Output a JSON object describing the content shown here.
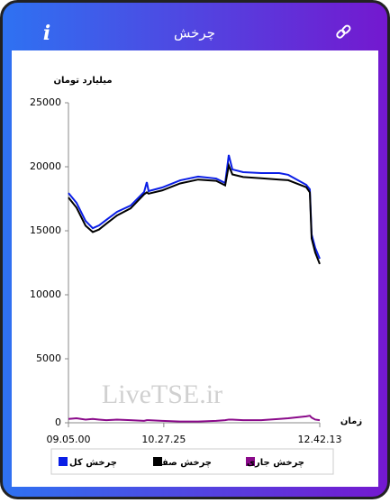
{
  "header": {
    "title": "چرخش"
  },
  "watermark": "LiveTSE.ir",
  "chart_data": {
    "type": "line",
    "ylabel": "میلیارد تومان",
    "xlabel": "زمان",
    "x": [
      "09.05.00",
      "09.12.00",
      "09.19.47",
      "09.26.01",
      "09.31.28",
      "09.37.42",
      "09.47.02",
      "09.58.43",
      "10.10.24",
      "10.12.44",
      "10.14.17",
      "10.25.58",
      "10.41.32",
      "10.57.07",
      "11.12.41",
      "11.20.28",
      "11.23.35",
      "11.26.42",
      "11.36.02",
      "11.51.37",
      "12.07.11",
      "12.14.58",
      "12.30.32",
      "12.33.39",
      "12.35.12",
      "12.38.19",
      "12.42.13"
    ],
    "xlim": [
      "09.05.00",
      "12.42.13"
    ],
    "xticks": [
      "09.05.00",
      "10.27.25",
      "12.42.13"
    ],
    "ylim": [
      0,
      25000
    ],
    "yticks": [
      0,
      5000,
      10000,
      15000,
      20000,
      25000
    ],
    "series": [
      {
        "name": "چرخش کل",
        "color": "#0a1ee6",
        "values": [
          17950,
          17180,
          15770,
          15200,
          15420,
          15850,
          16480,
          16970,
          18030,
          18800,
          18100,
          18380,
          18940,
          19230,
          19080,
          18730,
          20920,
          19790,
          19580,
          19510,
          19510,
          19370,
          18590,
          18240,
          14720,
          13660,
          12820
        ]
      },
      {
        "name": "چرخش صف",
        "color": "#000000",
        "values": [
          17600,
          16800,
          15400,
          14900,
          15100,
          15550,
          16200,
          16750,
          17850,
          18000,
          17900,
          18150,
          18700,
          19000,
          18900,
          18550,
          20100,
          19400,
          19200,
          19100,
          19000,
          18950,
          18400,
          18000,
          14400,
          13300,
          12400
        ]
      },
      {
        "name": "چرخش جاری",
        "color": "#8a0a8a",
        "values": [
          300,
          350,
          250,
          300,
          250,
          200,
          250,
          200,
          150,
          200,
          200,
          150,
          100,
          100,
          150,
          200,
          250,
          250,
          200,
          200,
          300,
          350,
          500,
          550,
          400,
          250,
          200
        ]
      }
    ]
  }
}
